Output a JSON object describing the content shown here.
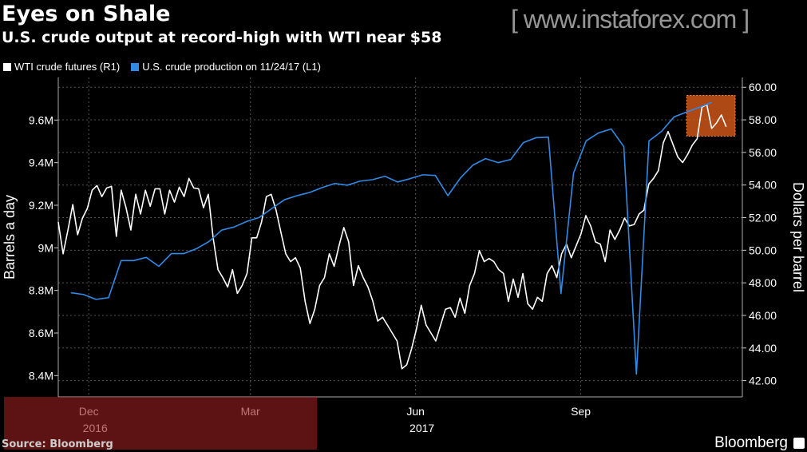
{
  "header": {
    "title": "Eyes on Shale",
    "subtitle": "U.S. crude output at record-high with WTI near $58"
  },
  "legend": [
    {
      "label": "WTI crude futures  (R1)",
      "color": "#ffffff"
    },
    {
      "label": "U.S. crude production  on 11/24/17 (L1)",
      "color": "#2f8be6"
    }
  ],
  "footer": {
    "source": "Source: Bloomberg",
    "brand": "Bloomberg",
    "watermark": "[ www.instaforex.com ]"
  },
  "chart_data": {
    "type": "line",
    "title": "Eyes on Shale",
    "subtitle": "U.S. crude output at record-high with WTI near $58",
    "x_range": [
      "2016-11-28",
      "2017-12-14"
    ],
    "x_ticks": [
      {
        "date": "2016-12-15",
        "label": "Dec",
        "year": "2016"
      },
      {
        "date": "2017-03-15",
        "label": "Mar",
        "year": ""
      },
      {
        "date": "2017-06-15",
        "label": "Jun",
        "year": "2017"
      },
      {
        "date": "2017-09-15",
        "label": "Sep",
        "year": ""
      }
    ],
    "y_left": {
      "label": "Barrels a day",
      "range": [
        8.3,
        9.8
      ],
      "ticks": [
        8.4,
        8.6,
        8.8,
        9.0,
        9.2,
        9.4,
        9.6
      ],
      "tick_labels": [
        "8.4M",
        "8.6M",
        "8.8M",
        "9M",
        "9.2M",
        "9.4M",
        "9.6M"
      ]
    },
    "y_right": {
      "label": "Dollars per barrel",
      "range": [
        41,
        60.6
      ],
      "ticks": [
        42,
        44,
        46,
        48,
        50,
        52,
        54,
        56,
        58,
        60
      ],
      "tick_labels": [
        "42.00",
        "44.00",
        "46.00",
        "48.00",
        "50.00",
        "52.00",
        "54.00",
        "56.00",
        "58.00",
        "60.00"
      ]
    },
    "grid": true,
    "legend_position": "top-left",
    "series": [
      {
        "name": "WTI crude futures  (R1)",
        "axis": "right",
        "color": "#ffffff",
        "date_range": [
          "2016-11-28",
          "2017-12-05"
        ],
        "values": [
          51.73,
          49.78,
          51.24,
          52.8,
          50.95,
          51.97,
          52.56,
          53.68,
          53.97,
          53.29,
          53.82,
          53.92,
          50.85,
          53.68,
          52.61,
          51.24,
          53.43,
          52.22,
          53.68,
          52.7,
          53.77,
          53.77,
          52.22,
          53.68,
          52.95,
          53.87,
          53.29,
          54.41,
          53.82,
          53.77,
          52.61,
          53.43,
          50.76,
          48.81,
          48.32,
          47.74,
          48.81,
          47.35,
          47.84,
          48.57,
          50.76,
          50.76,
          51.73,
          53.29,
          53.43,
          52.46,
          51.1,
          49.78,
          49.3,
          49.54,
          48.91,
          46.86,
          45.5,
          46.38,
          47.84,
          48.32,
          49.78,
          49.01,
          50.27,
          51.39,
          50.51,
          47.84,
          49.05,
          48.32,
          47.74,
          46.86,
          45.65,
          45.89,
          45.41,
          44.92,
          44.43,
          42.73,
          42.97,
          43.95,
          45.16,
          46.62,
          45.41,
          44.92,
          44.43,
          45.41,
          46.38,
          46.48,
          45.89,
          47.06,
          46.13,
          47.84,
          48.57,
          49.98,
          49.3,
          49.49,
          49.3,
          48.81,
          48.57,
          46.86,
          48.23,
          47.11,
          48.57,
          46.72,
          46.38,
          47.11,
          46.86,
          48.57,
          49.05,
          48.32,
          49.78,
          50.37,
          49.54,
          50.27,
          51.0,
          52.12,
          51.49,
          50.51,
          50.37,
          49.3,
          51.24,
          50.66,
          51.24,
          51.97,
          51.49,
          51.58,
          52.22,
          52.46,
          54.06,
          54.41,
          54.89,
          56.59,
          57.28,
          56.5,
          55.72,
          55.38,
          55.86,
          56.45,
          56.84,
          58.78,
          58.93,
          57.47,
          57.81,
          58.3,
          57.57
        ]
      },
      {
        "name": "U.S. crude production  on 11/24/17 (L1)",
        "axis": "left",
        "color": "#2f8be6",
        "start": "2016-12-05",
        "frequency": "weekly",
        "values": [
          8.789,
          8.781,
          8.758,
          8.766,
          8.94,
          8.94,
          8.955,
          8.913,
          8.973,
          8.973,
          8.996,
          9.03,
          9.083,
          9.098,
          9.124,
          9.143,
          9.185,
          9.226,
          9.245,
          9.26,
          9.283,
          9.302,
          9.294,
          9.313,
          9.32,
          9.336,
          9.309,
          9.325,
          9.343,
          9.34,
          9.245,
          9.328,
          9.389,
          9.419,
          9.4,
          9.415,
          9.494,
          9.517,
          9.52,
          8.785,
          9.351,
          9.502,
          9.54,
          9.558,
          9.475,
          8.407,
          9.502,
          9.547,
          9.615,
          9.638,
          9.66,
          9.683
        ]
      }
    ],
    "annotations": [
      {
        "type": "highlight-box",
        "color": "#e8601c",
        "date_range": [
          "2017-11-13",
          "2017-12-10"
        ],
        "price_range": [
          57.0,
          59.5
        ]
      }
    ]
  }
}
